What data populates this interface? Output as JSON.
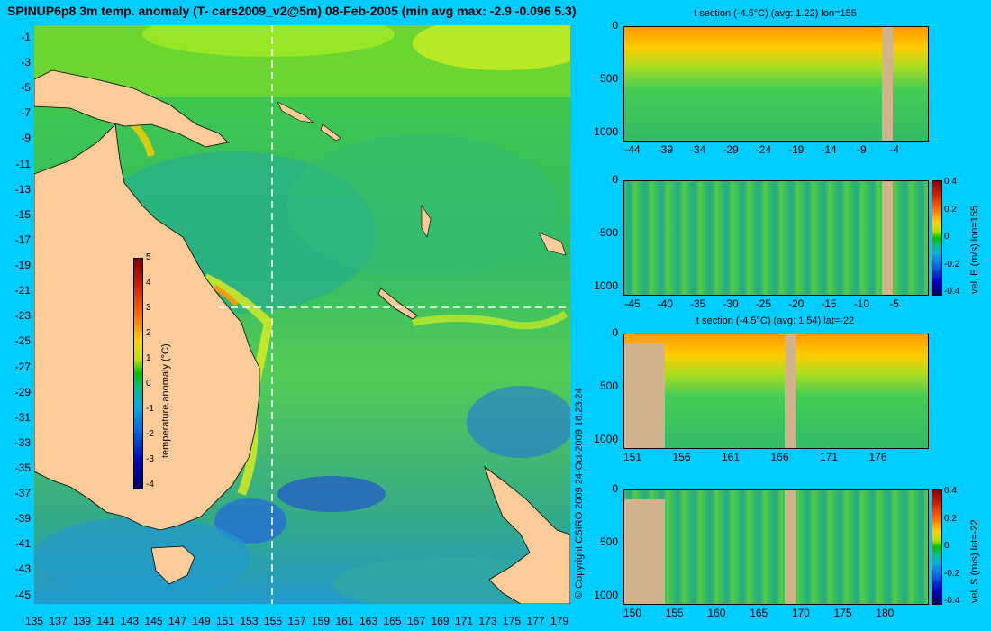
{
  "title": "SPINUP6p8 3m temp. anomaly (T- cars2009_v2@5m) 08-Feb-2005 (min avg max: -2.9 -0.096 5.3)",
  "copyright": "© Copyright CSIRO 2009   24-Oct-2009 16:23:24",
  "map": {
    "lat_labels": [
      "-1",
      "-3",
      "-5",
      "-7",
      "-9",
      "-11",
      "-13",
      "-15",
      "-17",
      "-19",
      "-21",
      "-23",
      "-25",
      "-27",
      "-29",
      "-31",
      "-33",
      "-35",
      "-37",
      "-39",
      "-41",
      "-43",
      "-45"
    ],
    "lon_labels": [
      "135",
      "137",
      "139",
      "141",
      "143",
      "145",
      "147",
      "149",
      "151",
      "153",
      "155",
      "157",
      "159",
      "161",
      "163",
      "165",
      "167",
      "169",
      "171",
      "173",
      "175",
      "177",
      "179"
    ],
    "colorbar": {
      "label": "temperature anomaly (°C)",
      "ticks": [
        "5",
        "4",
        "3",
        "2",
        "1",
        "0",
        "-1",
        "-2",
        "-3",
        "-4"
      ]
    },
    "colors": {
      "land": "#ffcc99",
      "ocean_mid": "#33bb55",
      "section_line": "#ffffff"
    }
  },
  "panels": [
    {
      "title": "t section (-4.5°C) (avg: 1.22) lon=155",
      "x_labels": [
        "-44",
        "-39",
        "-34",
        "-29",
        "-24",
        "-19",
        "-14",
        "-9",
        "-4"
      ],
      "y_labels": [
        "0",
        "500",
        "1000"
      ],
      "side_label": "",
      "cbar_ticks": []
    },
    {
      "title": "",
      "x_labels": [
        "-45",
        "-40",
        "-35",
        "-30",
        "-25",
        "-20",
        "-15",
        "-10",
        "-5"
      ],
      "y_labels": [
        "0",
        "500",
        "1000"
      ],
      "side_label": "vel. E (m/s) lon=155",
      "cbar_ticks": [
        "0.4",
        "0.2",
        "0",
        "-0.2",
        "-0.4"
      ]
    },
    {
      "title": "t section (-4.5°C) (avg: 1.54) lat=-22",
      "x_labels": [
        "151",
        "156",
        "161",
        "166",
        "171",
        "176"
      ],
      "y_labels": [
        "0",
        "500",
        "1000"
      ],
      "side_label": "",
      "cbar_ticks": []
    },
    {
      "title": "",
      "x_labels": [
        "150",
        "155",
        "160",
        "165",
        "170",
        "175",
        "180"
      ],
      "y_labels": [
        "0",
        "500",
        "1000"
      ],
      "side_label": "vel. S (m/s) lat=-22",
      "cbar_ticks": [
        "0.4",
        "0.2",
        "0",
        "-0.2",
        "-0.4"
      ]
    }
  ]
}
